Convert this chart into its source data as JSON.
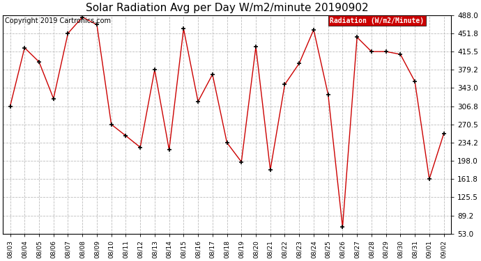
{
  "title": "Solar Radiation Avg per Day W/m2/minute 20190902",
  "copyright": "Copyright 2019 Cartronics.com",
  "legend_label": "Radiation (W/m2/Minute)",
  "dates": [
    "08/03",
    "08/04",
    "08/05",
    "08/06",
    "08/07",
    "08/08",
    "08/09",
    "08/10",
    "08/11",
    "08/12",
    "08/13",
    "08/14",
    "08/15",
    "08/16",
    "08/17",
    "08/18",
    "08/19",
    "08/20",
    "08/21",
    "08/22",
    "08/23",
    "08/24",
    "08/25",
    "08/26",
    "08/27",
    "08/28",
    "08/29",
    "08/30",
    "08/31",
    "09/01",
    "09/02"
  ],
  "values": [
    306.8,
    423.0,
    395.0,
    322.0,
    451.8,
    484.0,
    469.0,
    270.5,
    248.0,
    225.0,
    379.2,
    220.0,
    461.0,
    316.0,
    370.0,
    234.2,
    196.0,
    425.0,
    180.0,
    350.0,
    392.0,
    459.0,
    330.0,
    66.0,
    444.0,
    415.5,
    415.5,
    410.0,
    356.0,
    161.8,
    252.0
  ],
  "ylim_min": 53.0,
  "ylim_max": 488.0,
  "yticks": [
    53.0,
    89.2,
    125.5,
    161.8,
    198.0,
    234.2,
    270.5,
    306.8,
    343.0,
    379.2,
    415.5,
    451.8,
    488.0
  ],
  "line_color": "#cc0000",
  "marker_color": "black",
  "background_color": "#ffffff",
  "plot_bg_color": "#ffffff",
  "grid_color": "#bbbbbb",
  "title_fontsize": 11,
  "copyright_fontsize": 7,
  "legend_bg_color": "#cc0000",
  "legend_text_color": "#ffffff",
  "tick_fontsize": 7.5,
  "xtick_fontsize": 6.5
}
